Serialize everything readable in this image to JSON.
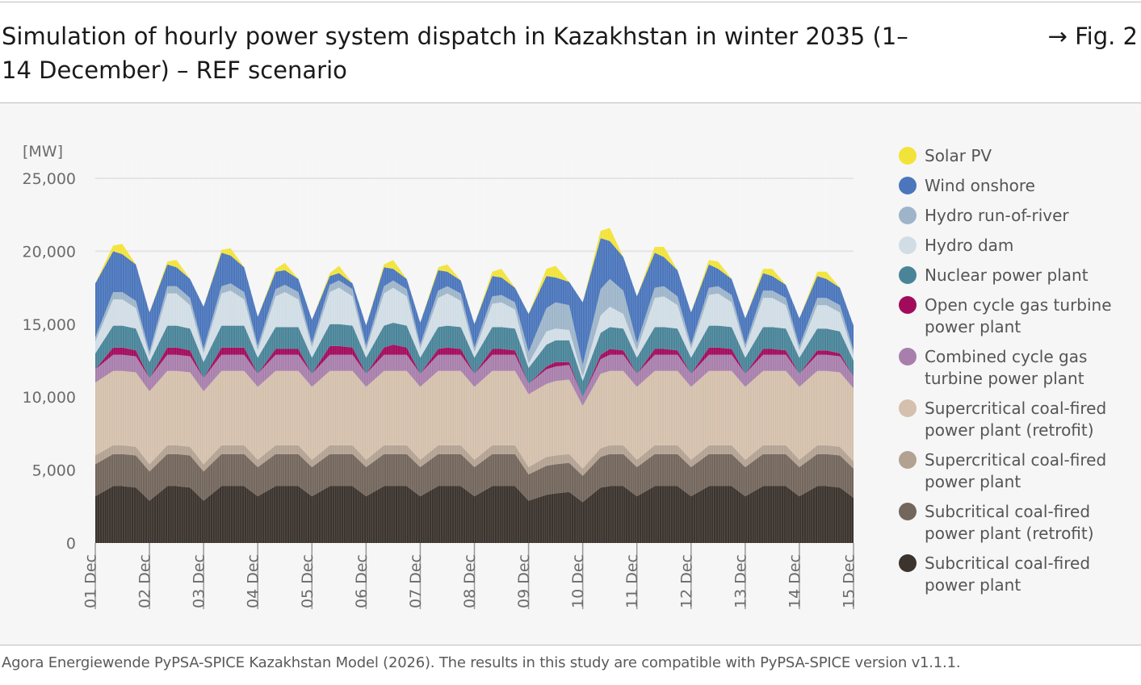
{
  "title": "Simulation of hourly power system dispatch in Kazakhstan in winter 2035 (1–14 December) – REF scenario",
  "fig_ref": "→ Fig. 2",
  "source": "Agora Energiewende PyPSA-SPICE Kazakhstan Model (2026). The results in this study are compatible with PyPSA-SPICE version v1.1.1.",
  "chart_data": {
    "type": "area",
    "stacked": true,
    "ylabel": "[MW]",
    "ylim": [
      0,
      25000
    ],
    "yticks": [
      0,
      5000,
      10000,
      15000,
      20000,
      25000
    ],
    "ytick_labels": [
      "0",
      "5,000",
      "10,000",
      "15,000",
      "20,000",
      "25,000"
    ],
    "x_tick_labels": [
      "01 Dec",
      "02 Dec",
      "03 Dec",
      "04 Dec",
      "05 Dec",
      "06 Dec",
      "07 Dec",
      "08 Dec",
      "09 Dec",
      "10 Dec",
      "11 Dec",
      "12 Dec",
      "13 Dec",
      "14 Dec",
      "15 Dec"
    ],
    "grid": true,
    "legend_position": "right",
    "x_unit": "day",
    "x": [
      0,
      0.33,
      0.5,
      0.75,
      1,
      1.33,
      1.5,
      1.75,
      2,
      2.33,
      2.5,
      2.75,
      3,
      3.33,
      3.5,
      3.75,
      4,
      4.33,
      4.5,
      4.75,
      5,
      5.33,
      5.5,
      5.75,
      6,
      6.33,
      6.5,
      6.75,
      7,
      7.33,
      7.5,
      7.75,
      8,
      8.33,
      8.5,
      8.75,
      9,
      9.33,
      9.5,
      9.75,
      10,
      10.33,
      10.5,
      10.75,
      11,
      11.33,
      11.5,
      11.75,
      12,
      12.33,
      12.5,
      12.75,
      13,
      13.33,
      13.5,
      13.75,
      14
    ],
    "series": [
      {
        "name": "Subcritical coal-fired power plant",
        "color": "#3b332d",
        "values": [
          3200,
          3900,
          3900,
          3800,
          2900,
          3900,
          3900,
          3800,
          2900,
          3900,
          3900,
          3900,
          3200,
          3900,
          3900,
          3900,
          3200,
          3900,
          3900,
          3900,
          3200,
          3900,
          3900,
          3900,
          3200,
          3900,
          3900,
          3900,
          3200,
          3900,
          3900,
          3900,
          2900,
          3300,
          3400,
          3500,
          2800,
          3800,
          3900,
          3900,
          3200,
          3900,
          3900,
          3900,
          3200,
          3900,
          3900,
          3900,
          3200,
          3900,
          3900,
          3900,
          3200,
          3900,
          3900,
          3800,
          3100
        ]
      },
      {
        "name": "Subcritical coal-fired power plant (retrofit)",
        "color": "#73665c",
        "values": [
          2200,
          2200,
          2200,
          2200,
          2000,
          2200,
          2200,
          2200,
          2000,
          2200,
          2200,
          2200,
          2000,
          2200,
          2200,
          2200,
          2000,
          2200,
          2200,
          2200,
          2000,
          2200,
          2200,
          2200,
          2000,
          2200,
          2200,
          2200,
          2000,
          2200,
          2200,
          2200,
          1800,
          2000,
          2000,
          2000,
          1800,
          2100,
          2200,
          2200,
          2000,
          2200,
          2200,
          2200,
          2000,
          2200,
          2200,
          2200,
          2000,
          2200,
          2200,
          2200,
          2000,
          2200,
          2200,
          2200,
          2000
        ]
      },
      {
        "name": "Supercritical coal-fired power plant",
        "color": "#b3a292",
        "values": [
          600,
          600,
          600,
          600,
          500,
          600,
          600,
          600,
          500,
          600,
          600,
          600,
          500,
          600,
          600,
          600,
          500,
          600,
          600,
          600,
          500,
          600,
          600,
          600,
          500,
          600,
          600,
          600,
          500,
          600,
          600,
          600,
          500,
          600,
          600,
          600,
          500,
          600,
          600,
          600,
          500,
          600,
          600,
          600,
          500,
          600,
          600,
          600,
          500,
          600,
          600,
          600,
          500,
          600,
          600,
          600,
          500
        ]
      },
      {
        "name": "Supercritical coal-fired power plant (retrofit)",
        "color": "#d4c0ac",
        "values": [
          5000,
          5100,
          5100,
          5100,
          5000,
          5100,
          5100,
          5100,
          5000,
          5100,
          5100,
          5100,
          5000,
          5100,
          5100,
          5100,
          5000,
          5100,
          5100,
          5100,
          5000,
          5100,
          5100,
          5100,
          5000,
          5100,
          5100,
          5100,
          5000,
          5100,
          5100,
          5100,
          5000,
          5000,
          5100,
          5100,
          4300,
          5100,
          5100,
          5100,
          5000,
          5100,
          5100,
          5100,
          5000,
          5100,
          5100,
          5100,
          5000,
          5100,
          5100,
          5100,
          5000,
          5100,
          5100,
          5100,
          5000
        ]
      },
      {
        "name": "Combined cycle gas turbine power plant",
        "color": "#a87fac",
        "values": [
          900,
          1100,
          1100,
          1100,
          900,
          1100,
          1100,
          1100,
          900,
          1100,
          1100,
          1100,
          900,
          1100,
          1100,
          1100,
          900,
          1100,
          1100,
          1100,
          900,
          1100,
          1100,
          1100,
          900,
          1100,
          1100,
          1100,
          900,
          1100,
          1100,
          1100,
          700,
          1000,
          1000,
          1000,
          600,
          1000,
          1100,
          1100,
          900,
          1100,
          1100,
          1100,
          900,
          1100,
          1100,
          1100,
          900,
          1100,
          1100,
          1100,
          900,
          1100,
          1100,
          1100,
          800
        ]
      },
      {
        "name": "Open cycle gas turbine power plant",
        "color": "#a20b5c",
        "values": [
          0,
          500,
          500,
          400,
          0,
          500,
          500,
          400,
          0,
          500,
          500,
          500,
          0,
          400,
          400,
          400,
          0,
          600,
          600,
          500,
          0,
          500,
          700,
          500,
          0,
          400,
          500,
          400,
          0,
          400,
          400,
          300,
          0,
          200,
          300,
          200,
          0,
          300,
          400,
          300,
          0,
          400,
          400,
          300,
          0,
          500,
          500,
          400,
          0,
          400,
          400,
          300,
          0,
          300,
          300,
          200,
          0
        ]
      },
      {
        "name": "Nuclear power plant",
        "color": "#4a8499",
        "values": [
          1100,
          1500,
          1500,
          1500,
          1100,
          1500,
          1500,
          1500,
          1100,
          1500,
          1500,
          1500,
          1100,
          1500,
          1500,
          1500,
          1100,
          1500,
          1500,
          1500,
          1100,
          1500,
          1500,
          1500,
          1100,
          1500,
          1500,
          1500,
          1100,
          1500,
          1500,
          1500,
          1100,
          1500,
          1500,
          1500,
          1100,
          1500,
          1500,
          1500,
          1100,
          1500,
          1500,
          1500,
          1100,
          1500,
          1500,
          1500,
          1100,
          1500,
          1500,
          1500,
          1100,
          1500,
          1500,
          1500,
          1100
        ]
      },
      {
        "name": "Hydro dam",
        "color": "#d1dde5",
        "values": [
          800,
          1800,
          1800,
          1400,
          400,
          2200,
          2200,
          1600,
          600,
          2200,
          2400,
          1800,
          500,
          2100,
          2400,
          1900,
          700,
          2200,
          2500,
          2000,
          500,
          2200,
          2400,
          2000,
          600,
          2000,
          2200,
          1800,
          400,
          1600,
          1700,
          1300,
          300,
          900,
          800,
          700,
          300,
          1200,
          1400,
          1000,
          500,
          2000,
          2100,
          1600,
          600,
          2100,
          2200,
          1700,
          600,
          2000,
          2000,
          1600,
          500,
          1600,
          1600,
          1300,
          400
        ]
      },
      {
        "name": "Hydro run-of-river",
        "color": "#9eb5c9",
        "values": [
          300,
          500,
          500,
          500,
          300,
          500,
          500,
          500,
          300,
          500,
          500,
          500,
          300,
          500,
          500,
          500,
          300,
          500,
          500,
          500,
          300,
          500,
          500,
          500,
          300,
          500,
          500,
          500,
          300,
          500,
          500,
          500,
          800,
          1600,
          1800,
          1700,
          800,
          1800,
          1900,
          1600,
          500,
          700,
          700,
          600,
          300,
          500,
          500,
          500,
          300,
          500,
          500,
          500,
          300,
          500,
          500,
          500,
          300
        ]
      },
      {
        "name": "Wind onshore",
        "color": "#4b76bc",
        "values": [
          3700,
          2800,
          2600,
          2500,
          2700,
          1500,
          1300,
          1300,
          2900,
          2300,
          1900,
          1700,
          2000,
          1200,
          1000,
          900,
          1600,
          600,
          500,
          400,
          1400,
          1300,
          800,
          700,
          1500,
          1400,
          1000,
          900,
          1600,
          1400,
          1200,
          1000,
          2600,
          2200,
          1700,
          1600,
          4300,
          3500,
          2600,
          2300,
          3200,
          2400,
          2000,
          1800,
          2200,
          1600,
          1200,
          1100,
          1800,
          1200,
          1000,
          900,
          1900,
          1500,
          1300,
          1200,
          1700
        ]
      },
      {
        "name": "Solar PV",
        "color": "#f2e33a",
        "values": [
          0,
          400,
          700,
          0,
          0,
          200,
          500,
          0,
          0,
          200,
          500,
          0,
          0,
          200,
          500,
          0,
          0,
          200,
          500,
          0,
          0,
          200,
          600,
          0,
          0,
          200,
          500,
          0,
          0,
          300,
          600,
          0,
          0,
          500,
          800,
          0,
          0,
          500,
          900,
          0,
          0,
          400,
          700,
          0,
          0,
          300,
          500,
          0,
          0,
          300,
          500,
          0,
          0,
          300,
          500,
          0,
          0
        ]
      }
    ]
  },
  "legend": [
    {
      "label": "Solar PV",
      "color": "#f2e33a"
    },
    {
      "label": "Wind onshore",
      "color": "#4b76bc"
    },
    {
      "label": "Hydro run-of-river",
      "color": "#9eb5c9"
    },
    {
      "label": "Hydro dam",
      "color": "#d1dde5"
    },
    {
      "label": "Nuclear power plant",
      "color": "#4a8499"
    },
    {
      "label": "Open cycle gas turbine power plant",
      "color": "#a20b5c"
    },
    {
      "label": "Combined cycle gas turbine power plant",
      "color": "#a87fac"
    },
    {
      "label": "Supercritical coal-fired power plant (retrofit)",
      "color": "#d4c0ac"
    },
    {
      "label": "Supercritical coal-fired power plant",
      "color": "#b3a292"
    },
    {
      "label": "Subcritical coal-fired power plant (retrofit)",
      "color": "#73665c"
    },
    {
      "label": "Subcritical coal-fired power plant",
      "color": "#3b332d"
    }
  ]
}
